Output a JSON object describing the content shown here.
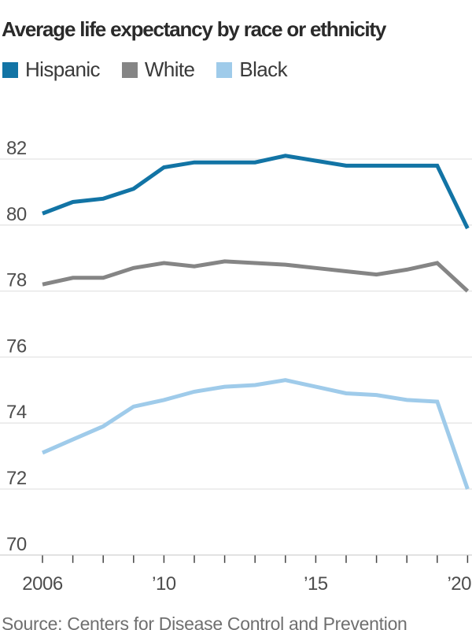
{
  "title": "Average life expectancy by race or ethnicity",
  "source": "Source: Centers for Disease Control and Prevention",
  "legend": [
    {
      "label": "Hispanic",
      "color": "#1274A5"
    },
    {
      "label": "White",
      "color": "#858585"
    },
    {
      "label": "Black",
      "color": "#9FCBEA"
    }
  ],
  "colors": {
    "title_text": "#2A2A2A",
    "legend_text": "#3A3A3A",
    "axis_text": "#4D4D4D",
    "source_text": "#6F6F6F",
    "gridline": "#E4E4E4",
    "axis_baseline": "#D4D4D4",
    "tick_mark": "#444444",
    "background": "#FFFFFF"
  },
  "chart_data": {
    "type": "line",
    "title": "Average life expectancy by race or ethnicity",
    "xlabel": "",
    "ylabel": "",
    "x": [
      2006,
      2007,
      2008,
      2009,
      2010,
      2011,
      2012,
      2013,
      2014,
      2015,
      2016,
      2017,
      2018,
      2019,
      2020
    ],
    "series": [
      {
        "name": "Hispanic",
        "color": "#1274A5",
        "values": [
          80.35,
          80.7,
          80.8,
          81.1,
          81.75,
          81.9,
          81.9,
          81.9,
          82.1,
          81.95,
          81.8,
          81.8,
          81.8,
          81.8,
          79.9
        ]
      },
      {
        "name": "White",
        "color": "#858585",
        "values": [
          78.2,
          78.4,
          78.4,
          78.7,
          78.85,
          78.75,
          78.9,
          78.85,
          78.8,
          78.7,
          78.6,
          78.5,
          78.65,
          78.85,
          78.0
        ]
      },
      {
        "name": "Black",
        "color": "#9FCBEA",
        "values": [
          73.1,
          73.5,
          73.9,
          74.5,
          74.7,
          74.95,
          75.1,
          75.15,
          75.3,
          75.1,
          74.9,
          74.85,
          74.7,
          74.65,
          72.0
        ]
      }
    ],
    "xlim": [
      2006,
      2020
    ],
    "ylim": [
      70,
      82.6
    ],
    "y_ticks": [
      82,
      80,
      78,
      76,
      74,
      72,
      70
    ],
    "x_tick_labels": {
      "2006": "2006",
      "2010": "’10",
      "2015": "’15",
      "2020": "’20"
    },
    "grid": true,
    "legend_position": "top-left"
  }
}
